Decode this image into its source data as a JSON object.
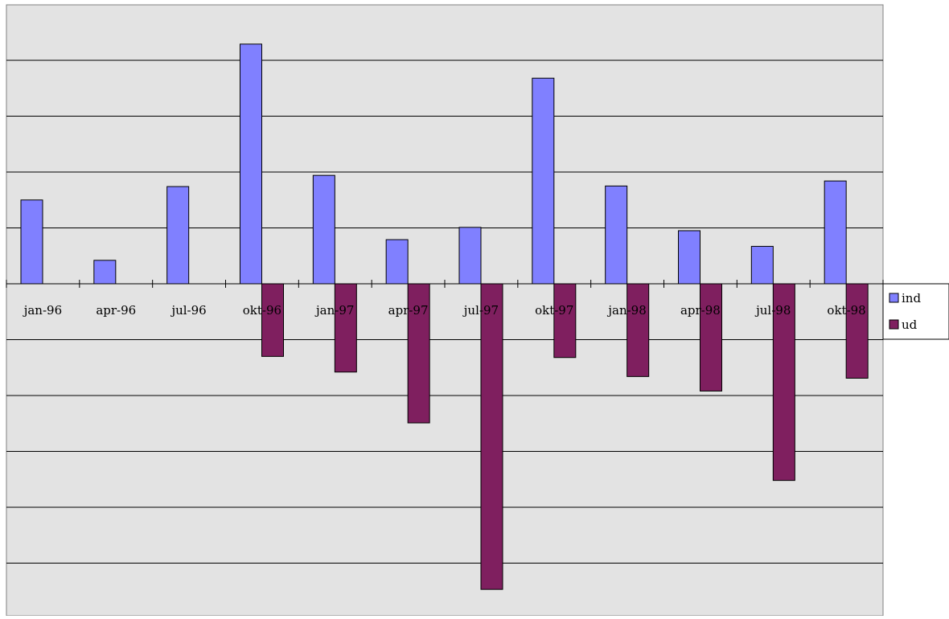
{
  "chart_data": {
    "type": "bar",
    "title": "",
    "xlabel": "",
    "ylabel": "",
    "categories": [
      "jan-96",
      "apr-96",
      "jul-96",
      "okt-96",
      "jan-97",
      "apr-97",
      "jul-97",
      "okt-97",
      "jan-98",
      "apr-98",
      "jul-98",
      "okt-98"
    ],
    "series": [
      {
        "name": "ind",
        "color": "#8080FF",
        "values": [
          1.5,
          0.42,
          1.74,
          4.29,
          1.94,
          0.79,
          1.01,
          3.68,
          1.75,
          0.95,
          0.67,
          1.84
        ]
      },
      {
        "name": "ud",
        "color": "#7F1F5F",
        "values": [
          0,
          0,
          0,
          -1.3,
          -1.58,
          -2.49,
          -5.47,
          -1.32,
          -1.66,
          -1.92,
          -3.52,
          -1.69
        ]
      }
    ],
    "ylim": [
      -6,
      5
    ],
    "y_ticks": [
      -6,
      -5,
      -4,
      -3,
      -2,
      -1,
      0,
      1,
      2,
      3,
      4,
      5
    ],
    "y_tick_labels_shown": false,
    "grid": true,
    "legend": {
      "position": "right",
      "entries": [
        "ind",
        "ud"
      ]
    },
    "colors": {
      "plot_background": "#E3E3E3",
      "gridline": "#000000",
      "border": "#808080"
    }
  }
}
